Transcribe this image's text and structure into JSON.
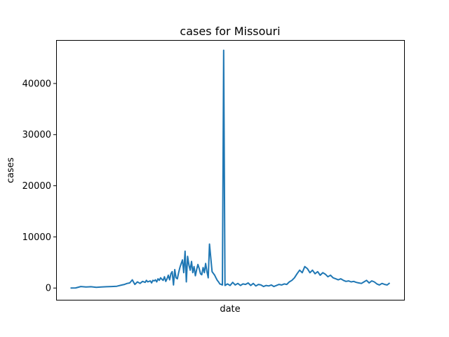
{
  "chart_data": {
    "type": "line",
    "title": "cases for Missouri",
    "xlabel": "date",
    "ylabel": "cases",
    "ylim": [
      -2300,
      48500
    ],
    "yticks": [
      0,
      10000,
      20000,
      30000,
      40000
    ],
    "ytick_labels": [
      "0",
      "10000",
      "20000",
      "30000",
      "40000"
    ],
    "xticks_shown": false,
    "grid": false,
    "legend": "none",
    "series": [
      {
        "color": "#1f77b4",
        "x": [
          0,
          20,
          40,
          60,
          80,
          100,
          120,
          140,
          160,
          180,
          200,
          210,
          220,
          230,
          240,
          250,
          260,
          270,
          280,
          290,
          295,
          300,
          305,
          310,
          315,
          320,
          325,
          330,
          335,
          340,
          345,
          350,
          355,
          360,
          365,
          370,
          375,
          380,
          385,
          390,
          395,
          400,
          405,
          410,
          415,
          420,
          425,
          430,
          435,
          440,
          445,
          450,
          455,
          460,
          465,
          470,
          475,
          480,
          485,
          490,
          495,
          500,
          505,
          510,
          515,
          520,
          525,
          530,
          535,
          540,
          550,
          560,
          565,
          570,
          575,
          580,
          585,
          590,
          595,
          600,
          610,
          620,
          630,
          640,
          650,
          660,
          670,
          680,
          690,
          700,
          710,
          720,
          730,
          740,
          750,
          760,
          770,
          780,
          790,
          800,
          810,
          820,
          830,
          840,
          850,
          860,
          870,
          880,
          890,
          900,
          910,
          920,
          930,
          940,
          950,
          960,
          970,
          980,
          990,
          1000,
          1010,
          1020,
          1030,
          1040,
          1050,
          1060,
          1070,
          1080,
          1090,
          1100,
          1110,
          1120,
          1130,
          1140,
          1150,
          1160,
          1170,
          1180,
          1190,
          1200,
          1210,
          1220,
          1230,
          1240
        ],
        "y": [
          0,
          20,
          300,
          200,
          250,
          150,
          200,
          250,
          300,
          350,
          600,
          700,
          900,
          1000,
          1600,
          700,
          1200,
          900,
          1300,
          1100,
          1500,
          1200,
          1300,
          1400,
          1000,
          1500,
          1400,
          1600,
          1200,
          1800,
          1500,
          2000,
          1700,
          1500,
          2200,
          1300,
          1800,
          2500,
          1600,
          2800,
          3200,
          600,
          3600,
          2000,
          1800,
          3000,
          4000,
          4800,
          5500,
          3000,
          7200,
          1200,
          6200,
          4500,
          3500,
          5200,
          3000,
          4200,
          2400,
          3600,
          4600,
          3800,
          2800,
          2600,
          4000,
          3000,
          4800,
          3200,
          2000,
          8600,
          3200,
          2500,
          2000,
          1500,
          1200,
          800,
          700,
          600,
          46500,
          500,
          800,
          500,
          1100,
          600,
          900,
          500,
          800,
          700,
          1000,
          500,
          900,
          400,
          700,
          600,
          300,
          500,
          400,
          600,
          300,
          500,
          700,
          600,
          800,
          700,
          1200,
          1500,
          2000,
          2800,
          3500,
          3000,
          4200,
          3800,
          3000,
          3500,
          2800,
          3200,
          2500,
          3000,
          2700,
          2200,
          2500,
          2000,
          1800,
          1600,
          1800,
          1500,
          1300,
          1400,
          1200,
          1300,
          1100,
          1000,
          900,
          1200,
          1500,
          1000,
          1400,
          1200,
          800,
          600,
          900,
          700,
          600,
          1000
        ]
      }
    ]
  }
}
